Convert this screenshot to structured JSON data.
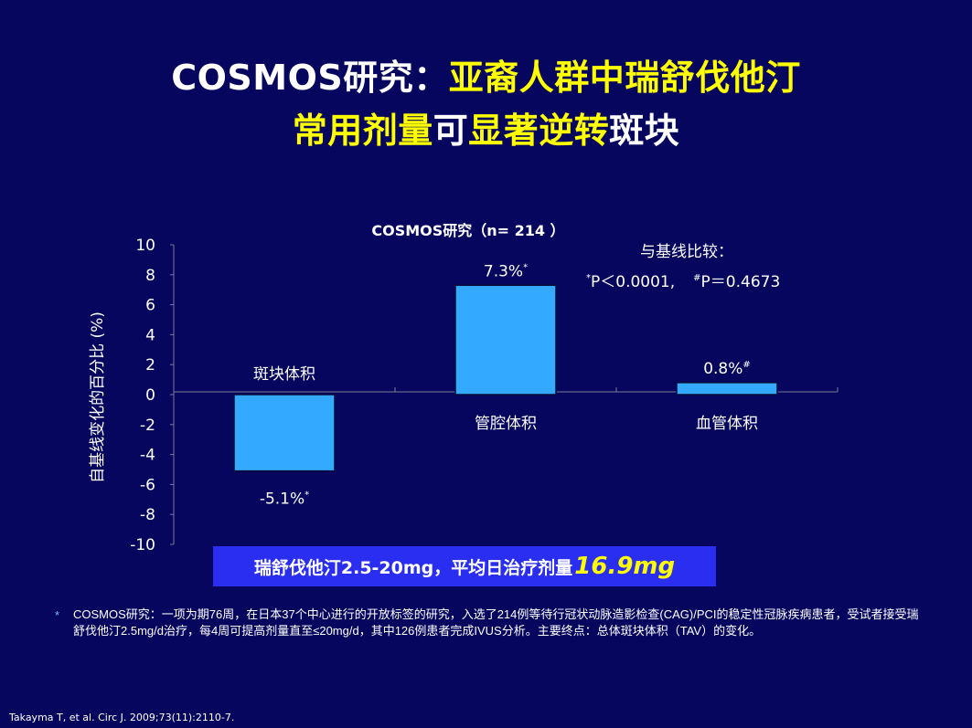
{
  "title": {
    "line1_a": "COSMOS研究：",
    "line1_b": "亚裔人群中",
    "line1_c": "瑞舒伐他汀",
    "line2_a": "常用剂量",
    "line2_b": "可",
    "line2_c": "显著逆转",
    "line2_d": "斑块"
  },
  "chart_data": {
    "type": "bar",
    "title": "COSMOS研究（n= 214 ）",
    "ylabel": "自基线变化的百分比 (%)",
    "ylim": [
      -10,
      10
    ],
    "yticks": [
      "10",
      "8",
      "6",
      "4",
      "2",
      "0",
      "-2",
      "-4",
      "-6",
      "-8",
      "-10"
    ],
    "categories": [
      "斑块体积",
      "管腔体积",
      "血管体积"
    ],
    "values": [
      -5.1,
      7.3,
      0.8
    ],
    "data_labels": [
      {
        "text": "-5.1%",
        "mark": "*"
      },
      {
        "text": "7.3%",
        "mark": "*"
      },
      {
        "text": "0.8%",
        "mark": "#"
      }
    ],
    "bar_color": "#33aaff",
    "annotation": {
      "line1": "与基线比较：",
      "p1_mark": "*",
      "p1_text": "P＜0.0001,",
      "p2_mark": "#",
      "p2_text": "P＝0.4673"
    }
  },
  "banner": {
    "text": "瑞舒伐他汀2.5-20mg，平均日治疗剂量",
    "dose": "16.9mg"
  },
  "footnote": {
    "star": "*",
    "text": "COSMOS研究：一项为期76周，在日本37个中心进行的开放标签的研究，入选了214例等待行冠状动脉造影检查(CAG)/PCI的稳定性冠脉疾病患者，受试者接受瑞舒伐他汀2.5mg/d治疗，每4周可提高剂量直至≤20mg/d，其中126例患者完成IVUS分析。主要终点：总体斑块体积（TAV）的变化。"
  },
  "reference": "Takayma T, et al. Circ J. 2009;73(11):2110-7."
}
